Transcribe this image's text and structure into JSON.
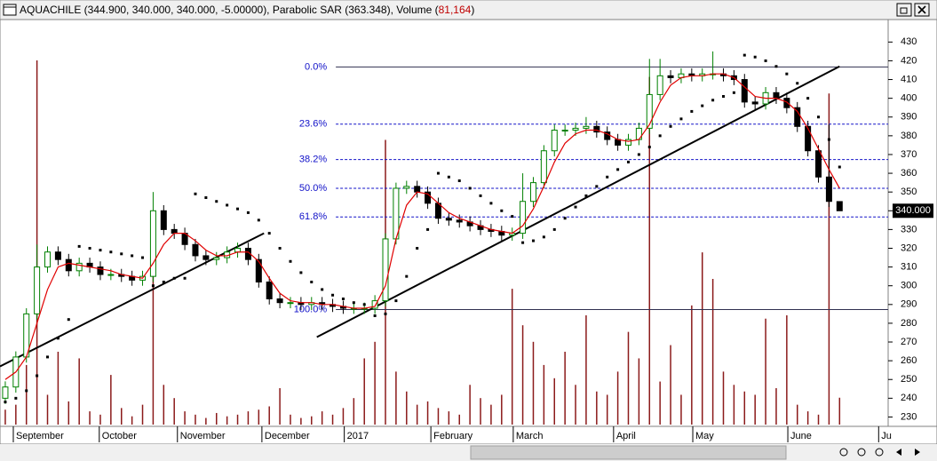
{
  "chart_data": {
    "type": "candlestick",
    "title_parts": [
      "AQUACHILE (344.900, 340.000, 340.000, -5.00000), Parabolic SAR (363.348), Volume (",
      "81,164",
      ")"
    ],
    "up_color": "#008000",
    "down_color": "#000000",
    "ma_color": "#e00000",
    "sar_color": "#000000",
    "volume_color": "#8b1a1a",
    "xlim": [
      -0.5,
      83.6
    ],
    "xticks": [
      {
        "value": 0.76,
        "label": "September"
      },
      {
        "value": 8.9,
        "label": "October"
      },
      {
        "value": 16.3,
        "label": "November"
      },
      {
        "value": 24.3,
        "label": "December"
      },
      {
        "value": 32.1,
        "label": "2017"
      },
      {
        "value": 40.3,
        "label": "February"
      },
      {
        "value": 48.1,
        "label": "March"
      },
      {
        "value": 57.6,
        "label": "April"
      },
      {
        "value": 65.1,
        "label": "May"
      },
      {
        "value": 74.1,
        "label": "June"
      },
      {
        "value": 82.7,
        "label": "Ju"
      }
    ],
    "ylim": [
      225,
      442
    ],
    "yticks": [
      230,
      240,
      250,
      260,
      270,
      280,
      290,
      300,
      310,
      320,
      330,
      340,
      350,
      360,
      370,
      380,
      390,
      400,
      410,
      420,
      430
    ],
    "last_price": {
      "value": 340,
      "label": "340.000"
    },
    "open": [
      240,
      246,
      262,
      285,
      310,
      318,
      314,
      308,
      312,
      310,
      306,
      306,
      305,
      303,
      305,
      340,
      330,
      328,
      322,
      316,
      314,
      315,
      318,
      320,
      314,
      302,
      293,
      291,
      291,
      290,
      291,
      290,
      289,
      288,
      288,
      288,
      292,
      325,
      352,
      353,
      350,
      344,
      336,
      335,
      334,
      332,
      330,
      329,
      327,
      328,
      345,
      355,
      372,
      383,
      383,
      384,
      385,
      382,
      378,
      375,
      378,
      384,
      402,
      412,
      411,
      413,
      412,
      413,
      413,
      412,
      410,
      398,
      397,
      403,
      400,
      395,
      385,
      372,
      358,
      344.9
    ],
    "high": [
      249,
      265,
      288,
      322,
      321,
      321,
      317,
      315,
      315,
      313,
      309,
      309,
      308,
      308,
      350,
      343,
      333,
      331,
      325,
      319,
      318,
      321,
      323,
      323,
      317,
      305,
      296,
      294,
      294,
      294,
      294,
      293,
      292,
      291,
      291,
      295,
      328,
      355,
      356,
      356,
      353,
      347,
      339,
      338,
      337,
      335,
      333,
      332,
      331,
      360,
      358,
      375,
      386,
      386,
      387,
      390,
      388,
      385,
      381,
      381,
      387,
      421,
      421,
      415,
      416,
      416,
      416,
      425,
      416,
      415,
      413,
      401,
      406,
      406,
      403,
      398,
      388,
      375,
      386,
      344.9
    ],
    "low": [
      237,
      243,
      259,
      282,
      307,
      311,
      305,
      305,
      307,
      303,
      303,
      302,
      300,
      300,
      302,
      327,
      325,
      319,
      313,
      311,
      311,
      312,
      315,
      311,
      299,
      290,
      288,
      288,
      287,
      287,
      287,
      286,
      285,
      285,
      285,
      285,
      289,
      322,
      349,
      347,
      341,
      333,
      332,
      331,
      329,
      327,
      326,
      324,
      324,
      325,
      342,
      352,
      369,
      380,
      380,
      381,
      379,
      375,
      372,
      372,
      375,
      381,
      399,
      408,
      408,
      409,
      409,
      410,
      409,
      407,
      395,
      394,
      394,
      397,
      392,
      382,
      369,
      355,
      342,
      340
    ],
    "close": [
      246,
      262,
      285,
      310,
      318,
      314,
      308,
      312,
      310,
      306,
      306,
      305,
      303,
      305,
      340,
      330,
      328,
      322,
      316,
      314,
      315,
      318,
      320,
      314,
      302,
      293,
      291,
      291,
      290,
      291,
      290,
      289,
      288,
      288,
      288,
      292,
      325,
      352,
      353,
      350,
      344,
      336,
      335,
      334,
      332,
      330,
      329,
      327,
      328,
      345,
      355,
      372,
      383,
      383,
      384,
      385,
      382,
      378,
      375,
      378,
      384,
      402,
      412,
      411,
      413,
      412,
      413,
      413,
      412,
      410,
      398,
      397,
      403,
      400,
      395,
      385,
      372,
      358,
      345,
      340
    ],
    "ma": [
      250,
      254,
      262,
      280,
      298,
      310,
      312,
      311,
      310,
      309,
      308,
      306,
      305,
      304,
      312,
      322,
      328,
      328,
      324,
      319,
      316,
      316,
      318,
      318,
      313,
      304,
      296,
      292,
      291,
      291,
      290,
      290,
      289,
      288,
      288,
      289,
      300,
      325,
      343,
      350,
      349,
      344,
      339,
      336,
      334,
      332,
      330,
      329,
      328,
      332,
      341,
      353,
      366,
      376,
      381,
      383,
      383,
      381,
      378,
      377,
      378,
      386,
      398,
      407,
      411,
      412,
      412,
      413,
      413,
      411,
      406,
      401,
      400,
      400,
      398,
      393,
      384,
      373,
      362,
      352
    ],
    "sar": [
      238,
      240,
      244,
      252,
      262,
      272,
      282,
      321,
      320,
      319,
      318,
      317,
      316,
      315,
      300,
      302,
      304,
      304,
      349,
      347,
      345,
      343,
      341,
      339,
      335,
      328,
      320,
      313,
      307,
      302,
      298,
      295,
      293,
      291,
      290,
      284,
      285,
      292,
      305,
      320,
      330,
      360,
      358,
      356,
      352,
      348,
      344,
      340,
      337,
      323,
      324,
      326,
      330,
      336,
      342,
      348,
      353,
      358,
      362,
      366,
      370,
      374,
      380,
      385,
      389,
      393,
      396,
      399,
      401,
      403,
      423,
      422,
      420,
      417,
      413,
      408,
      400,
      390,
      378,
      363.348
    ],
    "volume": [
      45000,
      60000,
      180000,
      1100000,
      90000,
      220000,
      70000,
      200000,
      40000,
      30000,
      150000,
      50000,
      25000,
      60000,
      560000,
      120000,
      80000,
      40000,
      30000,
      20000,
      35000,
      25000,
      30000,
      40000,
      45000,
      55000,
      110000,
      30000,
      20000,
      25000,
      40000,
      30000,
      50000,
      80000,
      200000,
      250000,
      860000,
      160000,
      100000,
      60000,
      70000,
      50000,
      40000,
      30000,
      120000,
      80000,
      60000,
      90000,
      410000,
      300000,
      250000,
      180000,
      140000,
      220000,
      120000,
      330000,
      100000,
      90000,
      160000,
      280000,
      200000,
      1050000,
      130000,
      240000,
      90000,
      360000,
      520000,
      440000,
      160000,
      120000,
      100000,
      90000,
      320000,
      110000,
      330000,
      60000,
      40000,
      30000,
      1000000,
      81164
    ],
    "fib_start": 31.3,
    "fib": [
      {
        "label": "0.0%",
        "value": 416.7
      },
      {
        "label": "23.6%",
        "value": 386.2
      },
      {
        "label": "38.2%",
        "value": 367.3
      },
      {
        "label": "50.0%",
        "value": 352.0
      },
      {
        "label": "61.8%",
        "value": 336.7
      },
      {
        "label": "100.0%",
        "value": 287.3
      }
    ],
    "trendlines": [
      {
        "x": [
          -0.5,
          24.5
        ],
        "y": [
          257,
          328
        ]
      },
      {
        "x": [
          29.5,
          79
        ],
        "y": [
          272.6,
          417
        ]
      }
    ]
  }
}
